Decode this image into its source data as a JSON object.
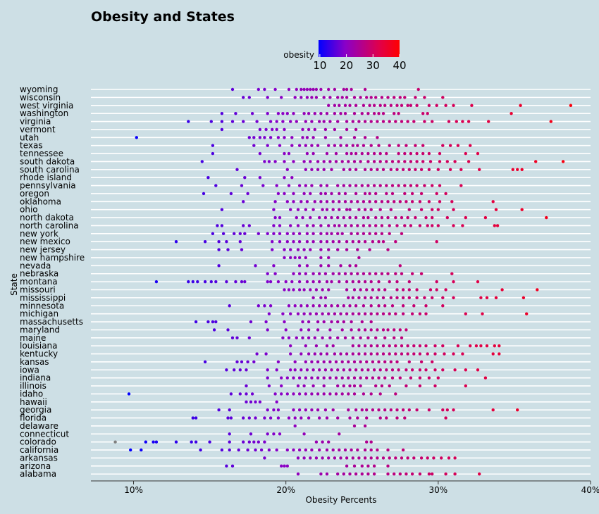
{
  "chart_data": {
    "type": "scatter",
    "title": "Obesity and States",
    "xlabel": "Obesity Percents",
    "ylabel": "State",
    "xlim": [
      7.2,
      40
    ],
    "x_ticks": [
      10,
      20,
      30,
      40
    ],
    "x_tick_labels": [
      "10%",
      "20%",
      "30%",
      "40%"
    ],
    "legend": {
      "title": "obesity",
      "range": [
        9.5,
        40
      ],
      "ticks": [
        10,
        20,
        30,
        40
      ],
      "tick_labels": [
        "10",
        "20",
        "30",
        "40"
      ],
      "colors": [
        "#0000ff",
        "#8a00c8",
        "#e0004a",
        "#ff0000"
      ],
      "missing_color": "#808080"
    },
    "categories": [
      "wyoming",
      "wisconsin",
      "west virginia",
      "washington",
      "virginia",
      "vermont",
      "utah",
      "texas",
      "tennessee",
      "south dakota",
      "south carolina",
      "rhode island",
      "pennsylvania",
      "oregon",
      "oklahoma",
      "ohio",
      "north dakota",
      "north carolina",
      "new york",
      "new mexico",
      "new jersey",
      "new hampshire",
      "nevada",
      "nebraska",
      "montana",
      "missouri",
      "mississippi",
      "minnesota",
      "michigan",
      "massachusetts",
      "maryland",
      "maine",
      "louisiana",
      "kentucky",
      "kansas",
      "iowa",
      "indiana",
      "illinois",
      "idaho",
      "hawaii",
      "georgia",
      "florida",
      "delaware",
      "connecticut",
      "colorado",
      "california",
      "arkansas",
      "arizona",
      "alabama"
    ],
    "points": {
      "wyoming": [
        16.5,
        18.2,
        18.6,
        19.3,
        20.2,
        20.7,
        21,
        21.2,
        21.4,
        21.6,
        21.8,
        22,
        22.3,
        22.8,
        23.2,
        23.8,
        24,
        24.3,
        25.2,
        28.7
      ],
      "wisconsin": [
        17.2,
        17.6,
        18.8,
        19.7,
        20.6,
        21,
        21.4,
        21.7,
        22,
        22.5,
        22.9,
        23.4,
        23.7,
        24,
        24.5,
        24.9,
        25.3,
        25.6,
        25.9,
        26.3,
        26.7,
        27.1,
        27.5,
        27.8,
        28.5,
        29.1,
        30.3
      ],
      "west virginia": [
        22.8,
        23.2,
        23.5,
        23.9,
        24.2,
        24.6,
        25.1,
        25.5,
        25.8,
        26.2,
        26.5,
        26.9,
        27.3,
        27.6,
        28,
        28.2,
        28.6,
        29.4,
        29.9,
        30.5,
        31,
        32.2,
        35.4,
        38.7
      ],
      "washington": [
        15.8,
        16.7,
        17.8,
        18.8,
        19.5,
        19.8,
        20.1,
        20.5,
        21.2,
        21.5,
        21.9,
        22.3,
        22.7,
        23.2,
        23.6,
        23.9,
        24.5,
        25,
        25.4,
        25.8,
        26.1,
        26.4,
        27.1,
        27.4,
        29,
        29.3,
        34.8
      ],
      "virginia": [
        13.6,
        15.1,
        15.8,
        16.5,
        17.2,
        18.1,
        19,
        19.4,
        19.8,
        20.3,
        20.7,
        21.3,
        21.7,
        22.2,
        22.5,
        22.9,
        23.4,
        24,
        24.4,
        24.8,
        25.2,
        25.6,
        26,
        26.4,
        26.8,
        27.2,
        27.6,
        28,
        28.4,
        29.1,
        29.6,
        30.7,
        31.2,
        31.6,
        32,
        33.3,
        37.4
      ],
      "vermont": [
        15.8,
        18.3,
        18.7,
        19.1,
        19.4,
        19.9,
        21.1,
        21.5,
        21.9,
        22.6,
        23.2,
        24,
        24.6
      ],
      "utah": [
        10.2,
        17.6,
        17.9,
        18.3,
        18.6,
        19,
        19.5,
        19.9,
        20.4,
        21.1,
        21.4,
        21.8,
        22.6,
        23.6,
        24.5,
        25.2,
        26
      ],
      "texas": [
        15.2,
        17.9,
        18.8,
        19.6,
        20.4,
        20.9,
        21.3,
        21.7,
        22.1,
        22.8,
        23.2,
        23.6,
        24,
        24.4,
        24.7,
        25.1,
        25.6,
        26.1,
        26.8,
        27.4,
        27.9,
        28.5,
        29,
        30.3,
        30.8,
        31.3,
        32.1
      ],
      "tennessee": [
        15.2,
        18.3,
        19.9,
        20.2,
        21.4,
        21.8,
        22.7,
        23.3,
        24,
        24.3,
        24.6,
        25,
        25.4,
        25.8,
        26.2,
        26.6,
        27.4,
        27.8,
        28.2,
        28.6,
        29,
        29.4,
        30.1,
        31.8,
        32.6
      ],
      "south dakota": [
        14.5,
        18.6,
        18.9,
        19.3,
        19.9,
        20.5,
        21.2,
        21.6,
        22.1,
        22.5,
        22.9,
        23.3,
        23.7,
        24.1,
        24.5,
        24.9,
        25.4,
        25.8,
        26.2,
        26.6,
        27,
        27.4,
        27.8,
        28.2,
        28.6,
        29,
        29.5,
        30.1,
        30.6,
        31.1,
        32,
        36.4,
        38.2
      ],
      "south carolina": [
        16.8,
        20.1,
        21.3,
        21.7,
        22.1,
        22.5,
        23,
        23.8,
        24.2,
        24.6,
        25.2,
        25.6,
        26,
        26.4,
        26.9,
        27.3,
        27.7,
        28.1,
        28.5,
        28.9,
        29.4,
        30,
        30.8,
        31.5,
        32.7,
        34.9,
        35.2,
        35.5
      ],
      "rhode island": [
        14.9,
        17.3,
        18.3,
        19.9,
        20.4
      ],
      "pennsylvania": [
        15.4,
        17.1,
        18.5,
        19.4,
        20.2,
        20.9,
        21.3,
        21.7,
        22.3,
        22.7,
        23.4,
        23.8,
        24.2,
        24.6,
        25,
        25.4,
        25.8,
        26.2,
        26.6,
        27,
        27.4,
        27.8,
        28.2,
        28.6,
        29.1,
        29.6,
        30.1,
        31.5
      ],
      "oregon": [
        14.6,
        16.4,
        17.5,
        19.5,
        19.9,
        20.5,
        21.2,
        21.6,
        22.3,
        22.6,
        23,
        23.5,
        23.9,
        24.6,
        25.2,
        25.5,
        25.9,
        26.6,
        27,
        27.8,
        28.3,
        28.9,
        29.9,
        30.5
      ],
      "oklahoma": [
        17.2,
        19.3,
        20.1,
        20.5,
        21,
        21.4,
        21.9,
        22.3,
        22.7,
        23.1,
        23.5,
        23.9,
        24.3,
        24.7,
        25.1,
        25.5,
        25.9,
        26.3,
        26.7,
        27.1,
        27.5,
        27.9,
        28.3,
        28.8,
        29.4,
        30.1,
        30.9,
        33.6
      ],
      "ohio": [
        15.8,
        19.2,
        20.3,
        20.8,
        21.3,
        21.8,
        22.4,
        22.7,
        23.1,
        23.5,
        24,
        24.2,
        24.8,
        25.2,
        25.6,
        26.2,
        26.9,
        28.1,
        28.9,
        29.6,
        30,
        31,
        33.8,
        35.5
      ],
      "north dakota": [
        19.3,
        19.6,
        20.7,
        21.1,
        21.6,
        22.2,
        22.6,
        23,
        23.4,
        23.8,
        24.2,
        24.6,
        25.1,
        25.4,
        25.9,
        26.3,
        26.7,
        27.2,
        27.6,
        28,
        28.5,
        29.2,
        29.6,
        30.6,
        31.8,
        33.1,
        37.1
      ],
      "north carolina": [
        15.5,
        15.8,
        17.2,
        17.6,
        19.2,
        19.6,
        20.3,
        20.8,
        21.4,
        21.8,
        22.3,
        22.8,
        23.2,
        23.5,
        23.9,
        24.3,
        24.7,
        25.1,
        25.5,
        25.9,
        26.3,
        26.8,
        27.3,
        27.8,
        28.2,
        28.8,
        29.3,
        29.6,
        30,
        31,
        31.6,
        33.7,
        33.9
      ],
      "new york": [
        15.2,
        15.9,
        16.6,
        17,
        17.3,
        18.2,
        18.8,
        19.2,
        19.6,
        20.1,
        20.5,
        20.9,
        21.4,
        21.8,
        22.3,
        22.7,
        23,
        23.4,
        23.7,
        24.3,
        24.7,
        25.1,
        25.5,
        25.9,
        26.3,
        26.8,
        27.6
      ],
      "new mexico": [
        12.8,
        14.7,
        15.6,
        16.1,
        17,
        19.1,
        19.6,
        20.1,
        20.5,
        20.9,
        21.4,
        21.8,
        22.3,
        22.7,
        23.1,
        23.5,
        24,
        24.4,
        24.8,
        25.2,
        25.7,
        26.1,
        26.4,
        27.2,
        29.9
      ],
      "new jersey": [
        15.6,
        16.2,
        17.1,
        19.1,
        19.9,
        20.3,
        20.8,
        21.2,
        21.6,
        22.3,
        22.8,
        23.4,
        24,
        24.7,
        25.5,
        26.7
      ],
      "new hampshire": [
        19.9,
        20.3,
        20.6,
        20.9,
        21.3,
        22.3,
        22.8,
        24.8
      ],
      "nevada": [
        15.6,
        18,
        19.2,
        20.9,
        21.4,
        22.3,
        22.8,
        23.6,
        24.2,
        24.6,
        27.5
      ],
      "nebraska": [
        18.8,
        19.3,
        20.5,
        20.9,
        21.3,
        21.8,
        22.2,
        22.6,
        23.1,
        23.5,
        23.9,
        24.3,
        24.7,
        25.1,
        25.5,
        25.9,
        26.3,
        26.7,
        27.2,
        27.6,
        28.3,
        28.9,
        30.9
      ],
      "montana": [
        11.5,
        13.6,
        13.9,
        14.2,
        14.7,
        15.1,
        15.4,
        16.1,
        16.7,
        17.1,
        17.3,
        18.8,
        19,
        19.5,
        20,
        20.4,
        20.9,
        21.4,
        21.8,
        22.2,
        22.7,
        23,
        23.5,
        24,
        24.4,
        24.8,
        25.2,
        25.6,
        26.1,
        26.8,
        27.3,
        28.1,
        29.9,
        31,
        32.6
      ],
      "missouri": [
        19.9,
        20.2,
        20.5,
        20.9,
        21.2,
        21.6,
        22,
        22.4,
        22.8,
        24,
        24.5,
        24.9,
        25.3,
        25.7,
        26.1,
        26.5,
        27.3,
        27.7,
        28.1,
        28.6,
        29.5,
        29.9,
        30.5,
        34.2,
        36.5
      ],
      "mississippi": [
        21.8,
        22.3,
        22.6,
        24.1,
        24.4,
        24.8,
        25.2,
        25.6,
        26,
        26.4,
        26.9,
        27.3,
        27.7,
        28.1,
        28.6,
        29.1,
        29.6,
        30.3,
        31,
        32.8,
        33.2,
        33.8,
        35.6
      ],
      "minnesota": [
        16.3,
        18.2,
        18.6,
        19,
        20.2,
        20.6,
        21,
        21.4,
        21.8,
        22.2,
        22.6,
        23,
        23.4,
        23.8,
        24.2,
        24.6,
        25.1,
        25.6,
        26.1,
        26.5,
        27,
        27.7,
        28.4,
        29.2,
        30.3
      ],
      "michigan": [
        18.9,
        19.8,
        20.3,
        20.8,
        21.2,
        21.6,
        22,
        22.4,
        22.8,
        23.2,
        23.6,
        24,
        24.4,
        24.8,
        25.2,
        25.6,
        26,
        26.4,
        26.8,
        27.2,
        27.7,
        28.3,
        28.8,
        29.2,
        31.8,
        32.9,
        35.8
      ],
      "massachusetts": [
        14.1,
        14.9,
        15.2,
        15.4,
        17.7,
        18.7,
        19.9,
        21.1,
        21.5,
        22.1,
        22.5,
        23,
        23.4,
        23.8,
        24.3,
        25,
        25.6
      ],
      "maryland": [
        15.3,
        16.2,
        18.8,
        20,
        21,
        21.5,
        22.1,
        22.9,
        23.7,
        24.3,
        24.8,
        25.2,
        25.6,
        26,
        26.4,
        26.7,
        27.1,
        27.5,
        27.9
      ],
      "maine": [
        16.5,
        16.8,
        17.6,
        19.8,
        20.2,
        20.7,
        21.1,
        21.5,
        21.9,
        22.4,
        22.9,
        23.4,
        23.9,
        24.4,
        24.9,
        25.4,
        25.9,
        26.5,
        27.1,
        27.6
      ],
      "louisiana": [
        20.3,
        21.3,
        22,
        22.7,
        23.1,
        24.4,
        24.8,
        25.2,
        25.6,
        26,
        26.4,
        26.8,
        27.2,
        27.6,
        28,
        28.4,
        28.8,
        29.2,
        29.8,
        30.3,
        31.3,
        32.1,
        32.5,
        32.8,
        33.2,
        33.7,
        34
      ],
      "kentucky": [
        18.1,
        18.7,
        20.3,
        21,
        21.5,
        21.9,
        22.3,
        22.7,
        23.2,
        23.6,
        24,
        24.4,
        24.8,
        25.2,
        25.6,
        26,
        26.4,
        26.8,
        27.2,
        27.6,
        28,
        28.4,
        28.8,
        29.3,
        29.8,
        30.4,
        31,
        31.6,
        33.6,
        34
      ],
      "kansas": [
        14.7,
        16.8,
        17.1,
        17.5,
        17.9,
        19.5,
        20.6,
        21.3,
        21.7,
        22.1,
        22.5,
        22.9,
        23.3,
        23.7,
        24.1,
        24.5,
        24.9,
        25.3,
        25.7,
        26.1,
        26.5,
        26.9,
        27.3,
        28.1,
        28.9,
        29.6
      ],
      "iowa": [
        16.1,
        16.6,
        17,
        17.4,
        18.8,
        19.4,
        20.3,
        20.6,
        21,
        21.4,
        21.8,
        22.2,
        22.6,
        23,
        23.4,
        23.8,
        24.2,
        24.6,
        25,
        25.4,
        25.8,
        26.2,
        26.6,
        27,
        27.4,
        27.9,
        28.3,
        28.8,
        29.2,
        29.8,
        30.3,
        31.1,
        31.8,
        32.6
      ],
      "indiana": [
        18.8,
        19.7,
        20.1,
        20.5,
        20.9,
        21.3,
        21.7,
        22.1,
        22.5,
        22.9,
        23.3,
        23.7,
        24.1,
        24.5,
        24.9,
        25.3,
        25.7,
        26.1,
        26.5,
        27,
        27.5,
        28.2,
        28.8,
        29.4,
        30,
        33.1
      ],
      "illinois": [
        17.4,
        18.9,
        19.7,
        20.8,
        21.2,
        21.8,
        22.5,
        23.4,
        23.8,
        24.2,
        24.5,
        24.9,
        25.9,
        26.3,
        26.8,
        27.9,
        28.8,
        29.8,
        31.8
      ],
      "idaho": [
        9.7,
        16.4,
        17,
        17.4,
        17.8,
        19.3,
        19.7,
        20.1,
        20.5,
        20.9,
        21.3,
        21.7,
        22.1,
        22.5,
        22.9,
        23.3,
        23.7,
        24.1,
        24.5,
        25.1,
        25.6,
        26.2,
        27.2
      ],
      "hawaii": [
        17.4,
        17.7,
        18,
        18.3,
        19.4
      ],
      "georgia": [
        15.6,
        16.3,
        18.8,
        19.2,
        19.5,
        20.5,
        20.9,
        21.3,
        21.7,
        22.1,
        22.6,
        23.1,
        24.1,
        24.6,
        25,
        25.3,
        25.7,
        26.1,
        26.5,
        26.9,
        27.3,
        27.7,
        28.1,
        28.6,
        29.4,
        30.3,
        30.6,
        31,
        33.6,
        35.2
      ],
      "florida": [
        13.9,
        14.1,
        16.2,
        16.4,
        17.2,
        17.6,
        18,
        18.6,
        19,
        19.5,
        20.2,
        20.6,
        21,
        21.5,
        22.2,
        22.7,
        23.4,
        24.2,
        24.7,
        25.3,
        26.2,
        26.6,
        27.3,
        27.8,
        30.5
      ],
      "delaware": [
        20.6,
        24.5,
        25.2
      ],
      "connecticut": [
        16.3,
        17.7,
        18.8,
        19.2,
        19.6,
        21.2,
        23.5
      ],
      "colorado": [
        8.8,
        10.8,
        11.3,
        11.5,
        12.8,
        13.8,
        14.1,
        15,
        16.3,
        17.2,
        17.6,
        17.9,
        18.2,
        18.6,
        22,
        22.4,
        22.8,
        25.3,
        25.6
      ],
      "california": [
        9.8,
        10.5,
        14.4,
        15.8,
        16.3,
        16.9,
        17.5,
        18,
        18.4,
        18.9,
        19.4,
        20.1,
        20.5,
        20.9,
        21.3,
        21.7,
        22.2,
        22.7,
        23.1,
        23.5,
        23.9,
        24.3,
        24.7,
        25.2,
        25.6,
        26,
        26.7,
        27.7
      ],
      "arkansas": [
        18.6,
        20.8,
        21.2,
        21.6,
        22,
        22.4,
        22.8,
        23.2,
        23.6,
        24,
        24.4,
        24.8,
        25.2,
        25.6,
        26,
        26.4,
        26.8,
        27.2,
        27.6,
        28,
        28.4,
        28.9,
        29.3,
        29.7,
        30.2,
        30.7,
        31.1
      ],
      "arizona": [
        16.1,
        16.5,
        19.7,
        19.9,
        20.1,
        24,
        24.5,
        25,
        25.4,
        25.8,
        26.7
      ],
      "alabama": [
        20.8,
        22.3,
        22.7,
        23.4,
        23.8,
        24.2,
        24.6,
        25,
        25.4,
        25.8,
        26.7,
        27.1,
        27.5,
        27.9,
        28.3,
        28.8,
        29.4,
        29.6,
        30.5,
        31.1,
        32.7
      ]
    }
  }
}
